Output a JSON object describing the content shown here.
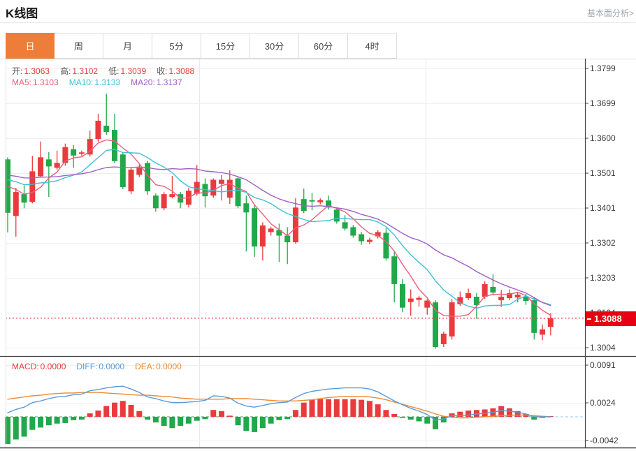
{
  "header": {
    "title": "K线图",
    "link": "基本面分析>"
  },
  "tabs": {
    "items": [
      "日",
      "周",
      "月",
      "5分",
      "15分",
      "30分",
      "60分",
      "4时"
    ],
    "active_index": 0
  },
  "info": {
    "ohlc": [
      {
        "label": "开:",
        "value": "1.3063"
      },
      {
        "label": "高:",
        "value": "1.3102"
      },
      {
        "label": "低:",
        "value": "1.3039"
      },
      {
        "label": "收:",
        "value": "1.3088"
      }
    ],
    "ma": [
      {
        "label": "MA5:",
        "value": "1.3103",
        "color": "#ee5d7b"
      },
      {
        "label": "MA10:",
        "value": "1.3133",
        "color": "#3ec0d6"
      },
      {
        "label": "MA20:",
        "value": "1.3137",
        "color": "#a05fc5"
      }
    ],
    "macd": [
      {
        "label": "MACD:",
        "value": "0.0000",
        "color": "#e93b3d"
      },
      {
        "label": "DIFF:",
        "value": "0.0000",
        "color": "#5b9bd5"
      },
      {
        "label": "DEA:",
        "value": "0.0000",
        "color": "#ee8a33"
      }
    ]
  },
  "colors": {
    "up": "#e93b3d",
    "down": "#21a84b",
    "ma5": "#ee5d7b",
    "ma10": "#3ec0d6",
    "ma20": "#a05fc5",
    "diff": "#5b9bd5",
    "dea": "#ee8a33",
    "accent_tab": "#ed7d39",
    "price_tag_bg": "#e60012",
    "dotted_line": "#f04341",
    "zero_dash": "#5cb787",
    "zero_dash_ext": "#a9cdf1",
    "grid": "#efefef",
    "vgrid": "#e9e9e9",
    "axis": "#3f3f3f",
    "border_light": "#dcdcdc",
    "ohlc_label": "#555555",
    "ohlc_value": "#e93b3d",
    "tick_text": "#3c3c3c",
    "link_gray": "#9aa3ab"
  },
  "chart_data": {
    "type": "candlestick",
    "title": "K线图",
    "legend": [
      "MA5",
      "MA10",
      "MA20",
      "MACD",
      "DIFF",
      "DEA"
    ],
    "price_axis": {
      "tick_labels": [
        "1.3799",
        "1.3699",
        "1.3600",
        "1.3501",
        "1.3401",
        "1.3302",
        "1.3203",
        "1.3104",
        "1.3004"
      ],
      "range_top": 1.3799,
      "range_bottom": 1.3004
    },
    "current_price": "1.3088",
    "current_price_value": 1.3088,
    "ma_periods": [
      5,
      10,
      20
    ],
    "ma_seed_closes": [
      1.3505,
      1.351,
      1.3512,
      1.3508,
      1.3505,
      1.3509,
      1.3512,
      1.3506,
      1.3503,
      1.3508,
      1.351,
      1.3505,
      1.35,
      1.3498,
      1.3502,
      1.35,
      1.349,
      1.3486,
      1.348,
      1.3472
    ],
    "candles_ohlc": [
      [
        1.354,
        1.3546,
        1.3332,
        1.3388
      ],
      [
        1.3379,
        1.3459,
        1.332,
        1.3447
      ],
      [
        1.3441,
        1.3466,
        1.3401,
        1.3417
      ],
      [
        1.3419,
        1.355,
        1.3415,
        1.3506
      ],
      [
        1.3492,
        1.3591,
        1.349,
        1.3546
      ],
      [
        1.354,
        1.3561,
        1.3433,
        1.352
      ],
      [
        1.3516,
        1.3565,
        1.351,
        1.353
      ],
      [
        1.353,
        1.3585,
        1.3522,
        1.3575
      ],
      [
        1.3569,
        1.3581,
        1.3516,
        1.3551
      ],
      [
        1.3556,
        1.3565,
        1.355,
        1.356
      ],
      [
        1.3554,
        1.3622,
        1.3548,
        1.3598
      ],
      [
        1.3598,
        1.367,
        1.359,
        1.365
      ],
      [
        1.3636,
        1.3727,
        1.361,
        1.3618
      ],
      [
        1.3624,
        1.367,
        1.353,
        1.3535
      ],
      [
        1.3554,
        1.356,
        1.3455,
        1.3461
      ],
      [
        1.3449,
        1.3516,
        1.3441,
        1.3511
      ],
      [
        1.3496,
        1.3526,
        1.349,
        1.3516
      ],
      [
        1.353,
        1.3536,
        1.3439,
        1.3449
      ],
      [
        1.3437,
        1.3443,
        1.3391,
        1.3401
      ],
      [
        1.3401,
        1.3447,
        1.3395,
        1.3441
      ],
      [
        1.3433,
        1.3493,
        1.3429,
        1.3441
      ],
      [
        1.3441,
        1.3447,
        1.3401,
        1.3417
      ],
      [
        1.3411,
        1.3459,
        1.3403,
        1.3451
      ],
      [
        1.3442,
        1.3524,
        1.3437,
        1.3476
      ],
      [
        1.347,
        1.3486,
        1.3403,
        1.3435
      ],
      [
        1.3437,
        1.3486,
        1.3431,
        1.3482
      ],
      [
        1.347,
        1.3495,
        1.3423,
        1.3482
      ],
      [
        1.3431,
        1.3509,
        1.3413,
        1.3482
      ],
      [
        1.3486,
        1.349,
        1.3401,
        1.3407
      ],
      [
        1.3415,
        1.3437,
        1.3278,
        1.3389
      ],
      [
        1.3401,
        1.3411,
        1.3262,
        1.3292
      ],
      [
        1.3292,
        1.3361,
        1.3252,
        1.3352
      ],
      [
        1.3333,
        1.3348,
        1.3323,
        1.3343
      ],
      [
        1.3339,
        1.3357,
        1.3248,
        1.3323
      ],
      [
        1.3323,
        1.3347,
        1.3242,
        1.3304
      ],
      [
        1.3304,
        1.343,
        1.33,
        1.3403
      ],
      [
        1.3427,
        1.3457,
        1.3387,
        1.3393
      ],
      [
        1.3424,
        1.3445,
        1.3395,
        1.342
      ],
      [
        1.3418,
        1.3429,
        1.3412,
        1.3424
      ],
      [
        1.3423,
        1.3437,
        1.3397,
        1.3403
      ],
      [
        1.3397,
        1.3403,
        1.3357,
        1.3363
      ],
      [
        1.3361,
        1.3381,
        1.3337,
        1.3343
      ],
      [
        1.3347,
        1.3353,
        1.3317,
        1.3323
      ],
      [
        1.3327,
        1.3333,
        1.3297,
        1.3307
      ],
      [
        1.3305,
        1.3317,
        1.3299,
        1.3311
      ],
      [
        1.3321,
        1.3339,
        1.3315,
        1.3333
      ],
      [
        1.3331,
        1.3345,
        1.3252,
        1.3258
      ],
      [
        1.3264,
        1.3278,
        1.3133,
        1.3185
      ],
      [
        1.3185,
        1.3199,
        1.3105,
        1.3118
      ],
      [
        1.3134,
        1.317,
        1.3095,
        1.3144
      ],
      [
        1.314,
        1.3151,
        1.3121,
        1.3146
      ],
      [
        1.3118,
        1.3142,
        1.3098,
        1.3138
      ],
      [
        1.3133,
        1.3139,
        1.3001,
        1.3006
      ],
      [
        1.3014,
        1.305,
        1.3006,
        1.3044
      ],
      [
        1.3036,
        1.3143,
        1.3027,
        1.3133
      ],
      [
        1.3128,
        1.3164,
        1.3123,
        1.3148
      ],
      [
        1.3145,
        1.3172,
        1.3139,
        1.3159
      ],
      [
        1.3149,
        1.3159,
        1.3086,
        1.3125
      ],
      [
        1.3149,
        1.3193,
        1.3143,
        1.3185
      ],
      [
        1.3177,
        1.3213,
        1.3153,
        1.3161
      ],
      [
        1.3139,
        1.3168,
        1.312,
        1.3149
      ],
      [
        1.3145,
        1.317,
        1.3139,
        1.3159
      ],
      [
        1.3147,
        1.3161,
        1.3133,
        1.3155
      ],
      [
        1.3149,
        1.3157,
        1.3126,
        1.3137
      ],
      [
        1.3139,
        1.3149,
        1.3027,
        1.3046
      ],
      [
        1.3041,
        1.307,
        1.3025,
        1.3056
      ],
      [
        1.3063,
        1.3102,
        1.3039,
        1.3088
      ]
    ],
    "macd": {
      "tick_labels": [
        "0.0091",
        "0.0024",
        "-0.0042"
      ],
      "unit": 0.0001,
      "hist": [
        -48,
        -40,
        -35,
        -23,
        -19,
        -15,
        -12,
        -11,
        -6,
        -5,
        6,
        11,
        19,
        25,
        28,
        21,
        10,
        -5,
        -10,
        -16,
        -20,
        -16,
        -12,
        -7,
        -4,
        12,
        10,
        2,
        -15,
        -25,
        -27,
        -20,
        -12,
        -6,
        -4,
        12,
        25,
        30,
        31,
        31,
        31,
        31,
        31,
        30,
        28,
        22,
        12,
        5,
        -2,
        -5,
        -8,
        -12,
        -22,
        -10,
        6,
        9,
        11,
        12,
        13,
        15,
        19,
        15,
        10,
        5,
        -5,
        -2,
        0
      ],
      "diff": [
        7,
        13,
        17,
        25,
        28,
        32,
        35,
        36,
        39,
        40,
        46,
        48,
        51,
        53,
        54,
        49,
        43,
        35,
        32,
        28,
        25,
        25,
        26,
        27,
        29,
        37,
        36,
        33,
        24,
        19,
        17,
        20,
        23,
        25,
        26,
        34,
        41,
        45,
        47,
        49,
        50,
        51,
        51,
        51,
        49,
        44,
        36,
        28,
        21,
        15,
        10,
        4,
        -6,
        -4,
        2,
        2,
        3,
        5,
        6,
        8,
        11,
        10,
        8,
        5,
        0,
        0,
        0
      ],
      "dea": [
        31,
        33,
        35,
        37,
        38,
        40,
        41,
        42,
        42,
        43,
        43,
        43,
        42,
        41,
        40,
        39,
        38,
        38,
        37,
        36,
        35,
        33,
        32,
        31,
        31,
        31,
        31,
        32,
        32,
        32,
        31,
        30,
        29,
        28,
        28,
        28,
        29,
        30,
        32,
        34,
        35,
        36,
        36,
        36,
        35,
        33,
        30,
        26,
        22,
        18,
        14,
        10,
        5,
        1,
        -1,
        -2,
        -2,
        -1,
        0,
        1,
        2,
        3,
        3,
        3,
        2,
        1,
        0
      ]
    }
  }
}
